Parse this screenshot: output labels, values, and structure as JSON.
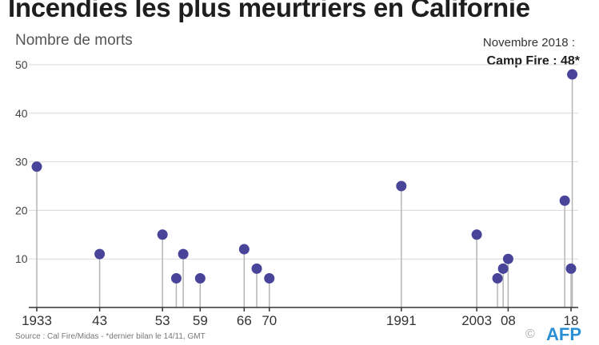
{
  "header": {
    "title": "Incendies les plus meurtriers en Californie",
    "subtitle": "Nombre de morts"
  },
  "annotation": {
    "date": "Novembre 2018 :",
    "label": "Camp Fire : 48*"
  },
  "footer": {
    "source": "Source : Cal Fire/Midas - *dernier bilan le 14/11, GMT",
    "logo_glyph": "©",
    "logo_text": "AFP"
  },
  "colors": {
    "marker": "#47449a",
    "stem": "#b5b5b5",
    "grid": "#d9d9d9"
  },
  "chart_data": {
    "type": "lollipop",
    "title": "Incendies les plus meurtriers en Californie",
    "ylabel": "Nombre de morts",
    "ylim": [
      0,
      50
    ],
    "yticks": [
      10,
      20,
      30,
      40,
      50
    ],
    "grid": "horizontal",
    "xlim": [
      1933,
      2018
    ],
    "xticks": [
      {
        "value": 1933,
        "label": "1933"
      },
      {
        "value": 1943,
        "label": "43"
      },
      {
        "value": 1953,
        "label": "53"
      },
      {
        "value": 1959,
        "label": "59"
      },
      {
        "value": 1966,
        "label": "66"
      },
      {
        "value": 1970,
        "label": "70"
      },
      {
        "value": 1991,
        "label": "1991"
      },
      {
        "value": 2003,
        "label": "2003"
      },
      {
        "value": 2008,
        "label": "08"
      },
      {
        "value": 2018,
        "label": "18"
      }
    ],
    "points": [
      {
        "year": 1933,
        "deaths": 29
      },
      {
        "year": 1943,
        "deaths": 11
      },
      {
        "year": 1953,
        "deaths": 15
      },
      {
        "year": 1955.2,
        "deaths": 6
      },
      {
        "year": 1956.3,
        "deaths": 11
      },
      {
        "year": 1959,
        "deaths": 6
      },
      {
        "year": 1966,
        "deaths": 12
      },
      {
        "year": 1968,
        "deaths": 8
      },
      {
        "year": 1970,
        "deaths": 6
      },
      {
        "year": 1991,
        "deaths": 25
      },
      {
        "year": 2003,
        "deaths": 15
      },
      {
        "year": 2006.3,
        "deaths": 6
      },
      {
        "year": 2007.2,
        "deaths": 8
      },
      {
        "year": 2008,
        "deaths": 10
      },
      {
        "year": 2017,
        "deaths": 22
      },
      {
        "year": 2018,
        "deaths": 8
      },
      {
        "year": 2018.2,
        "deaths": 48
      }
    ]
  }
}
